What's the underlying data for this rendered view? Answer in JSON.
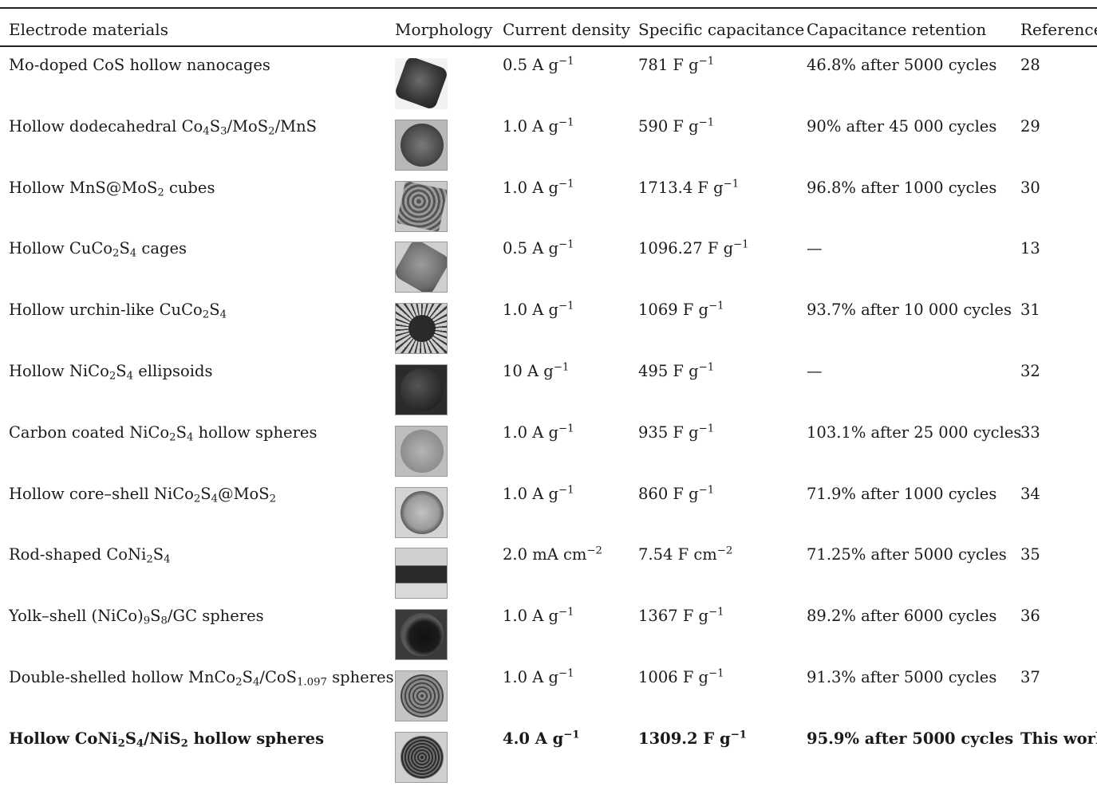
{
  "table": {
    "headers": {
      "material": "Electrode materials",
      "morphology": "Morphology",
      "current": "Current density",
      "capacitance": "Specific capacitance",
      "retention": "Capacitance retention",
      "reference": "Reference"
    },
    "rows": [
      {
        "material": [
          {
            "t": "Mo-doped CoS hollow nanocages"
          }
        ],
        "morphology": "cage",
        "current": {
          "v": "0.5 A g",
          "sup": "−1"
        },
        "capacitance": {
          "v": "781 F g",
          "sup": "−1"
        },
        "retention": "46.8% after 5000 cycles",
        "reference": "28"
      },
      {
        "material": [
          {
            "t": "Hollow dodecahedral Co"
          },
          {
            "sub": "4"
          },
          {
            "t": "S"
          },
          {
            "sub": "3"
          },
          {
            "t": "/MoS"
          },
          {
            "sub": "2"
          },
          {
            "t": "/MnS"
          }
        ],
        "morphology": "dark-sphere",
        "current": {
          "v": "1.0 A g",
          "sup": "−1"
        },
        "capacitance": {
          "v": "590 F g",
          "sup": "−1"
        },
        "retention": "90% after 45 000 cycles",
        "reference": "29"
      },
      {
        "material": [
          {
            "t": "Hollow MnS@MoS"
          },
          {
            "sub": "2"
          },
          {
            "t": " cubes"
          }
        ],
        "morphology": "cube",
        "current": {
          "v": "1.0 A g",
          "sup": "−1"
        },
        "capacitance": {
          "v": "1713.4 F g",
          "sup": "−1"
        },
        "retention": "96.8% after 1000 cycles",
        "reference": "30"
      },
      {
        "material": [
          {
            "t": "Hollow CuCo"
          },
          {
            "sub": "2"
          },
          {
            "t": "S"
          },
          {
            "sub": "4"
          },
          {
            "t": " cages"
          }
        ],
        "morphology": "poly",
        "current": {
          "v": "0.5 A g",
          "sup": "−1"
        },
        "capacitance": {
          "v": "1096.27 F g",
          "sup": "−1"
        },
        "retention": "—",
        "reference": "13"
      },
      {
        "material": [
          {
            "t": "Hollow urchin-like CuCo"
          },
          {
            "sub": "2"
          },
          {
            "t": "S"
          },
          {
            "sub": "4"
          }
        ],
        "morphology": "urchin",
        "current": {
          "v": "1.0 A g",
          "sup": "−1"
        },
        "capacitance": {
          "v": "1069 F g",
          "sup": "−1"
        },
        "retention": "93.7% after 10 000 cycles",
        "reference": "31"
      },
      {
        "material": [
          {
            "t": "Hollow NiCo"
          },
          {
            "sub": "2"
          },
          {
            "t": "S"
          },
          {
            "sub": "4"
          },
          {
            "t": " ellipsoids"
          }
        ],
        "morphology": "ellipsoid",
        "current": {
          "v": "10 A g",
          "sup": "−1"
        },
        "capacitance": {
          "v": "495 F g",
          "sup": "−1"
        },
        "retention": "—",
        "reference": "32"
      },
      {
        "material": [
          {
            "t": "Carbon coated NiCo"
          },
          {
            "sub": "2"
          },
          {
            "t": "S"
          },
          {
            "sub": "4"
          },
          {
            "t": " hollow spheres"
          }
        ],
        "morphology": "carbon",
        "current": {
          "v": "1.0 A g",
          "sup": "−1"
        },
        "capacitance": {
          "v": "935 F g",
          "sup": "−1"
        },
        "retention": "103.1% after 25 000 cycles",
        "reference": "33"
      },
      {
        "material": [
          {
            "t": "Hollow core–shell NiCo"
          },
          {
            "sub": "2"
          },
          {
            "t": "S"
          },
          {
            "sub": "4"
          },
          {
            "t": "@MoS"
          },
          {
            "sub": "2"
          }
        ],
        "morphology": "coreshell",
        "current": {
          "v": "1.0 A g",
          "sup": "−1"
        },
        "capacitance": {
          "v": "860 F g",
          "sup": "−1"
        },
        "retention": "71.9% after 1000 cycles",
        "reference": "34"
      },
      {
        "material": [
          {
            "t": "Rod-shaped CoNi"
          },
          {
            "sub": "2"
          },
          {
            "t": "S"
          },
          {
            "sub": "4"
          }
        ],
        "morphology": "rod",
        "current": {
          "v": "2.0 mA cm",
          "sup": "−2"
        },
        "capacitance": {
          "v": "7.54 F cm",
          "sup": "−2"
        },
        "retention": "71.25% after 5000 cycles",
        "reference": "35"
      },
      {
        "material": [
          {
            "t": "Yolk–shell (NiCo)"
          },
          {
            "sub": "9"
          },
          {
            "t": "S"
          },
          {
            "sub": "8"
          },
          {
            "t": "/GC spheres"
          }
        ],
        "morphology": "yolk",
        "current": {
          "v": "1.0 A g",
          "sup": "−1"
        },
        "capacitance": {
          "v": "1367 F g",
          "sup": "−1"
        },
        "retention": "89.2% after 6000 cycles",
        "reference": "36"
      },
      {
        "material": [
          {
            "t": "Double-shelled hollow MnCo"
          },
          {
            "sub": "2"
          },
          {
            "t": "S"
          },
          {
            "sub": "4"
          },
          {
            "t": "/CoS"
          },
          {
            "sub": "1.097"
          },
          {
            "t": " spheres"
          }
        ],
        "morphology": "double",
        "current": {
          "v": "1.0 A g",
          "sup": "−1"
        },
        "capacitance": {
          "v": "1006 F g",
          "sup": "−1"
        },
        "retention": "91.3% after 5000 cycles",
        "reference": "37"
      },
      {
        "bold": true,
        "material": [
          {
            "t": "Hollow CoNi"
          },
          {
            "sub": "2"
          },
          {
            "t": "S"
          },
          {
            "sub": "4"
          },
          {
            "t": "/NiS"
          },
          {
            "sub": "2"
          },
          {
            "t": " hollow spheres"
          }
        ],
        "morphology": "thiswork",
        "current": {
          "v": "4.0 A g",
          "sup": "−1"
        },
        "capacitance": {
          "v": "1309.2 F g",
          "sup": "−1"
        },
        "retention": "95.9% after 5000 cycles",
        "reference": "This work"
      }
    ]
  }
}
